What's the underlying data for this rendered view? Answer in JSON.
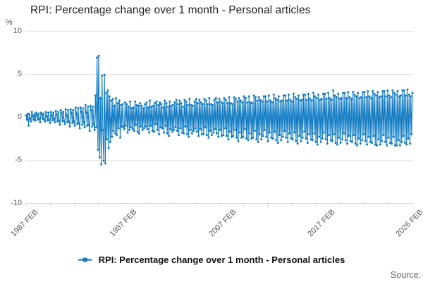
{
  "header": {
    "title": "RPI: Percentage change over 1 month - Personal articles"
  },
  "y_axis": {
    "unit_label": "%",
    "ticks": [
      "10",
      "5",
      "0",
      "-5",
      "-10"
    ]
  },
  "x_axis": {
    "labels": [
      "1987 FEB",
      "1997 FEB",
      "2007 FEB",
      "2017 FEB",
      "2026 FEB"
    ]
  },
  "legend": {
    "label": "RPI: Percentage change over 1 month - Personal articles"
  },
  "footer": {
    "source_label": "Source:"
  },
  "colors": {
    "series": "#0f7bc3",
    "grid": "#e6e6e6",
    "axis": "#ccd6eb",
    "title_text": "#212121",
    "tick_text": "#555555",
    "source_text": "#666666"
  },
  "chart_data": {
    "type": "line",
    "title": "RPI: Percentage change over 1 month - Personal articles",
    "ylabel": "%",
    "ylim": [
      -10,
      10
    ],
    "yticks": [
      10,
      5,
      0,
      -5,
      -10
    ],
    "frequency": "monthly",
    "start": "1987 FEB",
    "end": "2026 FEB",
    "x_tick_labels": [
      "1987 FEB",
      "1997 FEB",
      "2007 FEB",
      "2017 FEB",
      "2026 FEB"
    ],
    "x_tick_month_offsets": [
      0,
      120,
      240,
      360,
      468
    ],
    "grid": true,
    "legend_position": "bottom-center",
    "marker": "circle",
    "series": [
      {
        "name": "RPI: Percentage change over 1 month - Personal articles",
        "values": [
          0.2,
          -0.3,
          0.4,
          -1.0,
          0.3,
          -0.2,
          -0.5,
          0.6,
          0.1,
          -0.3,
          0.3,
          -0.4,
          0.5,
          0.2,
          -0.3,
          0.4,
          -0.2,
          -0.6,
          0.5,
          0.3,
          -0.2,
          0.4,
          -0.3,
          -0.5,
          0.6,
          0.1,
          -0.4,
          0.5,
          -0.3,
          -0.7,
          0.6,
          0.2,
          -0.4,
          0.5,
          -0.2,
          -0.6,
          0.7,
          0.3,
          -0.5,
          0.6,
          -0.4,
          -0.9,
          0.8,
          0.4,
          -0.5,
          0.6,
          -0.4,
          -0.8,
          0.9,
          0.2,
          -0.6,
          0.8,
          -0.5,
          -1.1,
          0.9,
          0.5,
          -0.7,
          0.8,
          -0.5,
          -1.0,
          1.1,
          0.4,
          -0.8,
          1.0,
          -0.7,
          -1.3,
          1.1,
          0.6,
          -0.9,
          1.0,
          -0.6,
          -1.2,
          1.4,
          0.5,
          -1.0,
          1.2,
          -0.9,
          -1.6,
          1.3,
          0.8,
          -1.1,
          1.2,
          -0.8,
          -1.5,
          2.5,
          -1.2,
          6.9,
          -3.8,
          7.1,
          -4.7,
          2.2,
          -5.5,
          4.8,
          -1.5,
          -5.1,
          4.9,
          -5.4,
          2.8,
          -2.6,
          3.1,
          -3.6,
          2.4,
          -2.9,
          1.9,
          -2.3,
          2.1,
          -1.6,
          1.3,
          -1.9,
          2.2,
          -2.1,
          1.6,
          -1.3,
          1.9,
          -2.4,
          1.4,
          -1.1,
          1.5,
          -1.2,
          -1.4,
          1.7,
          -1.0,
          1.5,
          -1.8,
          1.2,
          -1.5,
          1.8,
          -1.2,
          1.0,
          -1.4,
          1.1,
          -1.6,
          1.8,
          -0.9,
          1.4,
          -1.7,
          1.3,
          -1.9,
          1.6,
          -1.1,
          1.3,
          -1.5,
          1.0,
          -1.3,
          1.5,
          -1.1,
          1.7,
          -1.4,
          1.1,
          -1.8,
          1.9,
          -1.0,
          1.2,
          -1.6,
          1.3,
          -1.7,
          1.6,
          -0.8,
          1.8,
          -1.5,
          1.4,
          -2.0,
          1.7,
          -1.2,
          1.5,
          -1.3,
          1.1,
          -1.8,
          1.9,
          -1.0,
          1.6,
          -1.9,
          1.2,
          -2.2,
          1.8,
          -1.4,
          1.3,
          -1.7,
          1.4,
          -1.5,
          1.7,
          -1.2,
          2.0,
          -1.6,
          1.5,
          -2.1,
          1.9,
          -1.3,
          1.6,
          -1.8,
          1.2,
          -1.9,
          2.0,
          -1.1,
          1.8,
          -2.0,
          1.4,
          -2.3,
          2.1,
          -1.5,
          1.4,
          -1.9,
          1.3,
          -1.6,
          1.8,
          -1.3,
          2.1,
          -1.7,
          1.6,
          -2.2,
          2.0,
          -1.4,
          1.7,
          -2.0,
          1.5,
          -2.0,
          2.1,
          -1.2,
          1.9,
          -2.1,
          1.5,
          -2.4,
          2.2,
          -1.6,
          1.5,
          -2.1,
          1.4,
          -1.8,
          2.0,
          -1.4,
          2.2,
          -1.9,
          1.7,
          -2.3,
          2.1,
          -1.5,
          1.8,
          -2.2,
          1.6,
          -2.1,
          2.2,
          -1.3,
          2.0,
          -2.2,
          1.6,
          -2.6,
          2.3,
          -1.7,
          1.6,
          -2.3,
          1.5,
          -2.2,
          2.3,
          -1.5,
          2.1,
          -2.4,
          1.8,
          -2.8,
          2.2,
          -1.8,
          1.9,
          -2.4,
          1.7,
          -2.3,
          2.4,
          -1.4,
          2.2,
          -2.5,
          1.7,
          -2.7,
          2.4,
          -1.9,
          1.7,
          -2.5,
          1.6,
          -2.4,
          2.5,
          -1.6,
          2.3,
          -2.6,
          1.9,
          -2.9,
          2.3,
          -2.0,
          2.0,
          -2.6,
          1.8,
          -2.2,
          2.4,
          -1.5,
          2.4,
          -2.3,
          1.8,
          -2.8,
          2.5,
          -1.8,
          1.9,
          -2.4,
          1.7,
          -2.5,
          2.6,
          -1.7,
          2.2,
          -2.7,
          2.0,
          -3.0,
          2.4,
          -2.1,
          1.8,
          -2.7,
          1.9,
          -2.3,
          2.5,
          -1.6,
          2.5,
          -2.4,
          1.9,
          -2.9,
          2.6,
          -1.9,
          2.0,
          -2.5,
          1.8,
          -2.6,
          2.7,
          -1.8,
          2.3,
          -2.8,
          2.1,
          -3.1,
          2.5,
          -2.2,
          1.9,
          -2.8,
          2.0,
          -2.4,
          2.6,
          -1.7,
          2.6,
          -2.5,
          2.0,
          -3.0,
          2.7,
          -2.0,
          2.1,
          -2.6,
          1.9,
          -2.7,
          2.8,
          -1.9,
          2.4,
          -2.9,
          2.2,
          -3.2,
          2.6,
          -2.3,
          2.0,
          -2.9,
          2.1,
          -2.5,
          2.7,
          -1.8,
          2.7,
          -2.6,
          2.1,
          -3.1,
          2.8,
          -2.1,
          2.2,
          -2.7,
          2.0,
          -2.8,
          3.1,
          -2.0,
          2.5,
          -3.0,
          2.3,
          -3.2,
          2.7,
          -2.4,
          2.1,
          -3.0,
          2.2,
          -2.6,
          2.8,
          -1.9,
          2.8,
          -2.7,
          2.2,
          -3.1,
          2.9,
          -2.2,
          2.3,
          -2.8,
          2.1,
          -2.9,
          2.9,
          -2.1,
          2.6,
          -3.1,
          2.4,
          -3.3,
          2.8,
          -2.5,
          2.2,
          -3.1,
          2.3,
          -2.7,
          2.9,
          -2.0,
          2.9,
          -2.8,
          2.3,
          -3.2,
          3.0,
          -2.3,
          2.4,
          -2.9,
          2.2,
          -3.0,
          3.0,
          -2.2,
          2.7,
          -3.2,
          2.5,
          -3.3,
          2.9,
          -2.6,
          2.3,
          -3.2,
          2.4,
          -2.8,
          3.0,
          -2.1,
          3.0,
          -2.9,
          2.4,
          -3.3,
          3.1,
          -2.4,
          2.5,
          -3.0,
          2.3,
          -3.1,
          3.1,
          -2.3,
          2.8,
          -3.3,
          2.6,
          -3.3,
          3.0,
          -2.7,
          2.4,
          -3.3,
          2.5,
          -2.9,
          3.1,
          -2.2,
          3.1,
          -3.0,
          2.5,
          -3.2,
          3.2,
          -2.5,
          2.6,
          -3.1,
          2.4,
          -2.0,
          2.8
        ]
      }
    ]
  }
}
